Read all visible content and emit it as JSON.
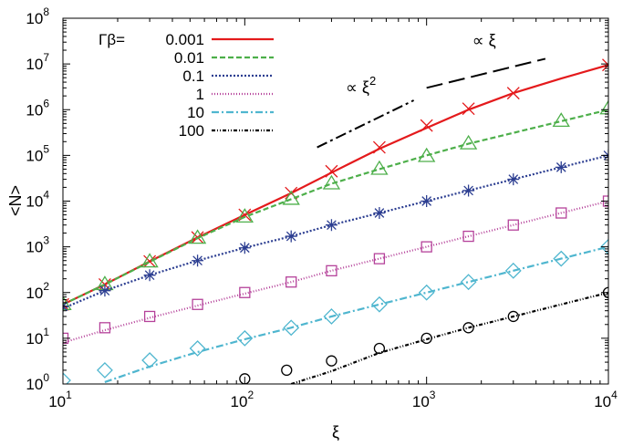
{
  "chart_data": {
    "type": "line",
    "xscale": "log",
    "yscale": "log",
    "xlabel": "ξ",
    "ylabel": "<N>",
    "xlim": [
      10,
      10000
    ],
    "ylim": [
      1,
      100000000
    ],
    "x_ticks": [
      {
        "base": "10",
        "exp": "1",
        "value": 10
      },
      {
        "base": "10",
        "exp": "2",
        "value": 100
      },
      {
        "base": "10",
        "exp": "3",
        "value": 1000
      },
      {
        "base": "10",
        "exp": "4",
        "value": 10000
      }
    ],
    "y_ticks": [
      {
        "base": "10",
        "exp": "0",
        "value": 1
      },
      {
        "base": "10",
        "exp": "1",
        "value": 10
      },
      {
        "base": "10",
        "exp": "2",
        "value": 100
      },
      {
        "base": "10",
        "exp": "3",
        "value": 1000
      },
      {
        "base": "10",
        "exp": "4",
        "value": 10000
      },
      {
        "base": "10",
        "exp": "5",
        "value": 100000
      },
      {
        "base": "10",
        "exp": "6",
        "value": 1000000
      },
      {
        "base": "10",
        "exp": "7",
        "value": 10000000
      },
      {
        "base": "10",
        "exp": "8",
        "value": 100000000
      }
    ],
    "legend_title": "Γβ=",
    "legend_position": "top-left",
    "series": [
      {
        "name": "0.001",
        "color": "#e41a1c",
        "dash": "solid",
        "marker": "x",
        "curve_x": [
          10,
          17,
          30,
          55,
          100,
          180,
          300,
          550,
          1000,
          1700,
          3000,
          5500,
          10000
        ],
        "curve_y": [
          55,
          150,
          480,
          1600,
          5000,
          15000,
          42000,
          140000,
          400000,
          1000000,
          2300000,
          4800000,
          9500000
        ],
        "marker_x": [
          10,
          17,
          30,
          55,
          100,
          180,
          300,
          550,
          1000,
          1700,
          3000,
          10000
        ],
        "marker_y": [
          55,
          150,
          480,
          1600,
          5000,
          15000,
          45000,
          150000,
          450000,
          1050000,
          2300000,
          9500000
        ]
      },
      {
        "name": "0.01",
        "color": "#4daf4a",
        "dash": "6,3",
        "marker": "triangle",
        "curve_x": [
          10,
          17,
          30,
          55,
          100,
          180,
          300,
          550,
          1000,
          1700,
          3000,
          5500,
          10000
        ],
        "curve_y": [
          55,
          150,
          470,
          1550,
          4500,
          11000,
          24000,
          50000,
          100000,
          180000,
          310000,
          560000,
          1000000
        ],
        "marker_x": [
          10,
          17,
          30,
          55,
          100,
          180,
          300,
          550,
          1000,
          1700,
          5500,
          10000
        ],
        "marker_y": [
          55,
          150,
          470,
          1550,
          4500,
          11000,
          24000,
          50000,
          95000,
          180000,
          560000,
          1050000
        ]
      },
      {
        "name": "0.1",
        "color": "#2c3e91",
        "dash": "2,2",
        "marker": "asterisk",
        "curve_x": [
          10,
          17,
          30,
          55,
          100,
          180,
          300,
          550,
          1000,
          1700,
          3000,
          5500,
          10000
        ],
        "curve_y": [
          45,
          110,
          240,
          500,
          950,
          1700,
          3000,
          5500,
          10000,
          17000,
          30000,
          55000,
          100000
        ],
        "marker_x": [
          10,
          17,
          30,
          55,
          100,
          180,
          300,
          550,
          1000,
          1700,
          3000,
          5500,
          10000
        ],
        "marker_y": [
          50,
          110,
          240,
          500,
          950,
          1700,
          3000,
          5500,
          10000,
          17000,
          30000,
          55000,
          100000
        ]
      },
      {
        "name": "1",
        "color": "#b5429a",
        "dash": "1,2",
        "marker": "square",
        "curve_x": [
          10,
          17,
          30,
          55,
          100,
          180,
          300,
          550,
          1000,
          1700,
          3000,
          5500,
          10000
        ],
        "curve_y": [
          8,
          15,
          28,
          52,
          95,
          170,
          300,
          550,
          1000,
          1700,
          3000,
          5500,
          10000
        ],
        "marker_x": [
          10,
          17,
          30,
          55,
          100,
          180,
          300,
          550,
          1000,
          1700,
          3000,
          5500,
          10000
        ],
        "marker_y": [
          10,
          17,
          30,
          55,
          100,
          170,
          300,
          550,
          1000,
          1700,
          3000,
          5500,
          10000
        ]
      },
      {
        "name": "10",
        "color": "#4fb6cf",
        "dash": "8,3,2,3",
        "marker": "diamond",
        "curve_x": [
          17,
          30,
          55,
          100,
          180,
          300,
          550,
          1000,
          1700,
          3000,
          5500,
          10000
        ],
        "curve_y": [
          1.1,
          2.4,
          5,
          9.5,
          17,
          30,
          55,
          100,
          170,
          300,
          550,
          1000
        ],
        "marker_x": [
          10,
          17,
          30,
          55,
          100,
          180,
          300,
          550,
          1000,
          1700,
          3000,
          5500,
          10000
        ],
        "marker_y": [
          1.2,
          2,
          3.3,
          6,
          10,
          17,
          30,
          55,
          100,
          170,
          300,
          550,
          1000
        ]
      },
      {
        "name": "100",
        "color": "#000000",
        "dash": "4,2,1,2,1,2",
        "marker": "circle",
        "curve_x": [
          180,
          300,
          550,
          1000,
          1700,
          3000,
          5500,
          10000
        ],
        "curve_y": [
          1.0,
          1.9,
          4.8,
          9.5,
          17,
          30,
          55,
          100
        ],
        "marker_x": [
          100,
          170,
          300,
          550,
          1000,
          1700,
          3000,
          10000
        ],
        "marker_y": [
          1.3,
          2,
          3.2,
          6,
          10,
          17,
          30,
          100
        ]
      }
    ],
    "guides": [
      {
        "label": "∝ ξ",
        "sup": "2",
        "x": [
          250,
          850
        ],
        "y": [
          150000,
          1600000
        ],
        "dash": "12,4,3,4"
      },
      {
        "label": "∝ ξ",
        "sup": "",
        "x": [
          1000,
          4500
        ],
        "y": [
          3000000,
          13000000
        ],
        "dash": "18,7"
      }
    ]
  }
}
